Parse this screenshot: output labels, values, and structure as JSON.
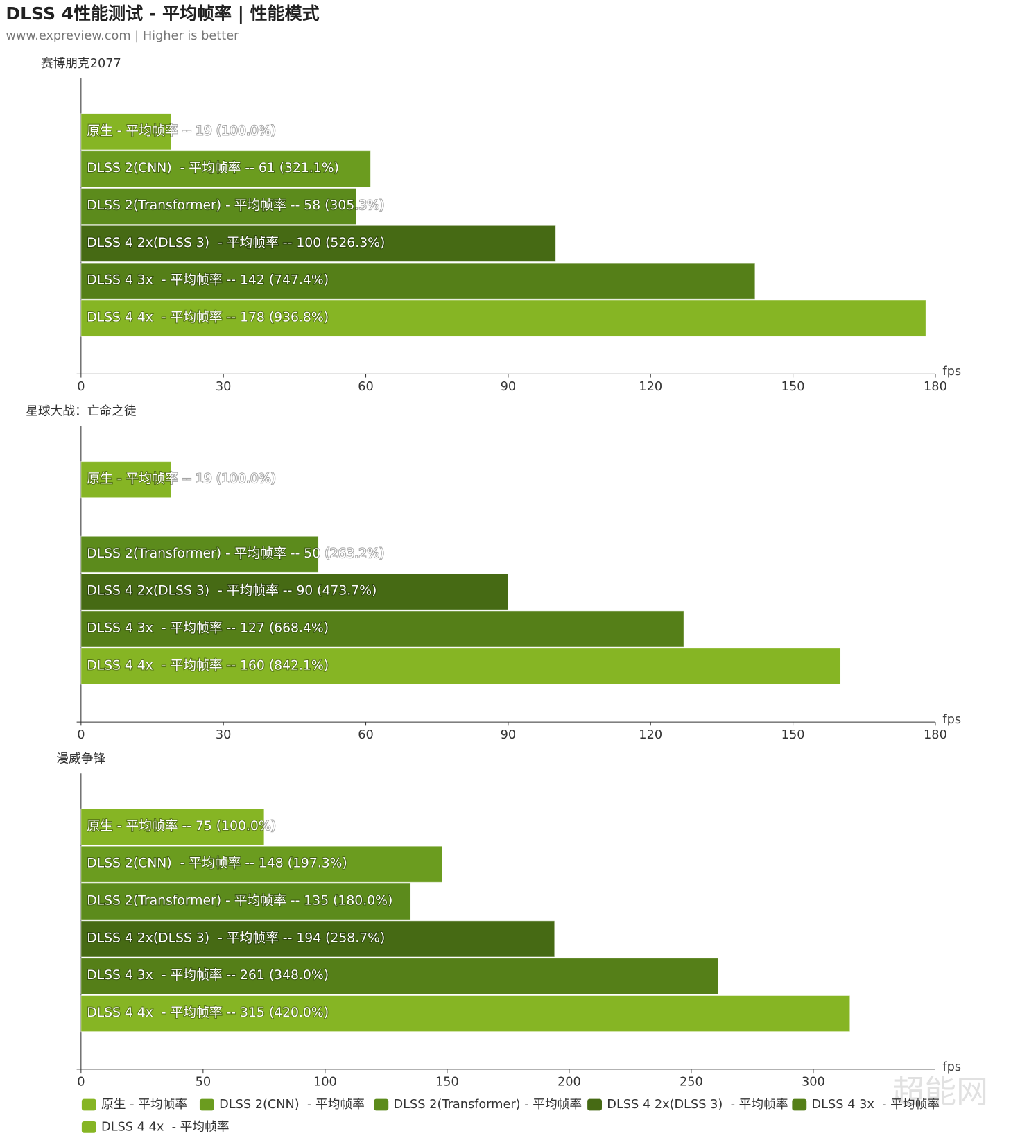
{
  "title": "DLSS 4性能测试 - 平均帧率 | 性能模式",
  "subtitle": "www.expreview.com | Higher is better",
  "watermark": "超能网",
  "chart_data": [
    {
      "type": "bar",
      "orientation": "horizontal",
      "title": "赛博朋克2077",
      "xlabel": "fps",
      "xlim": [
        0,
        180
      ],
      "xticks": [
        0,
        30,
        60,
        90,
        120,
        150,
        180
      ],
      "series": [
        {
          "name": "原生 - 平均帧率",
          "color": "#86b524",
          "values": [
            19
          ],
          "value_labels": [
            "原生 - 平均帧率 -- 19 (100.0%)"
          ]
        },
        {
          "name": "DLSS 2(CNN)  - 平均帧率",
          "color": "#6b9c1f",
          "values": [
            61
          ],
          "value_labels": [
            "DLSS 2(CNN)  - 平均帧率 -- 61 (321.1%)"
          ]
        },
        {
          "name": "DLSS 2(Transformer) - 平均帧率",
          "color": "#5c8b1c",
          "values": [
            58
          ],
          "value_labels": [
            "DLSS 2(Transformer) - 平均帧率 -- 58 (305.3%)"
          ]
        },
        {
          "name": "DLSS 4 2x(DLSS 3)  - 平均帧率",
          "color": "#466a14",
          "values": [
            100
          ],
          "value_labels": [
            "DLSS 4 2x(DLSS 3)  - 平均帧率 -- 100 (526.3%)"
          ]
        },
        {
          "name": "DLSS 4 3x  - 平均帧率",
          "color": "#557f18",
          "values": [
            142
          ],
          "value_labels": [
            "DLSS 4 3x  - 平均帧率 -- 142 (747.4%)"
          ]
        },
        {
          "name": "DLSS 4 4x  - 平均帧率",
          "color": "#86b524",
          "values": [
            178
          ],
          "value_labels": [
            "DLSS 4 4x  - 平均帧率 -- 178 (936.8%)"
          ]
        }
      ]
    },
    {
      "type": "bar",
      "orientation": "horizontal",
      "title": "星球大战：亡命之徒",
      "xlabel": "fps",
      "xlim": [
        0,
        180
      ],
      "xticks": [
        0,
        30,
        60,
        90,
        120,
        150,
        180
      ],
      "series": [
        {
          "name": "原生 - 平均帧率",
          "color": "#86b524",
          "values": [
            19
          ],
          "value_labels": [
            "原生 - 平均帧率 -- 19 (100.0%)"
          ]
        },
        {
          "name": "DLSS 2(CNN)  - 平均帧率",
          "color": "#6b9c1f",
          "values": [
            null
          ],
          "value_labels": [
            null
          ]
        },
        {
          "name": "DLSS 2(Transformer) - 平均帧率",
          "color": "#5c8b1c",
          "values": [
            50
          ],
          "value_labels": [
            "DLSS 2(Transformer) - 平均帧率 -- 50 (263.2%)"
          ]
        },
        {
          "name": "DLSS 4 2x(DLSS 3)  - 平均帧率",
          "color": "#466a14",
          "values": [
            90
          ],
          "value_labels": [
            "DLSS 4 2x(DLSS 3)  - 平均帧率 -- 90 (473.7%)"
          ]
        },
        {
          "name": "DLSS 4 3x  - 平均帧率",
          "color": "#557f18",
          "values": [
            127
          ],
          "value_labels": [
            "DLSS 4 3x  - 平均帧率 -- 127 (668.4%)"
          ]
        },
        {
          "name": "DLSS 4 4x  - 平均帧率",
          "color": "#86b524",
          "values": [
            160
          ],
          "value_labels": [
            "DLSS 4 4x  - 平均帧率 -- 160 (842.1%)"
          ]
        }
      ]
    },
    {
      "type": "bar",
      "orientation": "horizontal",
      "title": "漫威争锋",
      "xlabel": "fps",
      "xlim": [
        0,
        350
      ],
      "xticks": [
        0,
        50,
        100,
        150,
        200,
        250,
        300
      ],
      "series": [
        {
          "name": "原生 - 平均帧率",
          "color": "#86b524",
          "values": [
            75
          ],
          "value_labels": [
            "原生 - 平均帧率 -- 75 (100.0%)"
          ]
        },
        {
          "name": "DLSS 2(CNN)  - 平均帧率",
          "color": "#6b9c1f",
          "values": [
            148
          ],
          "value_labels": [
            "DLSS 2(CNN)  - 平均帧率 -- 148 (197.3%)"
          ]
        },
        {
          "name": "DLSS 2(Transformer) - 平均帧率",
          "color": "#5c8b1c",
          "values": [
            135
          ],
          "value_labels": [
            "DLSS 2(Transformer) - 平均帧率 -- 135 (180.0%)"
          ]
        },
        {
          "name": "DLSS 4 2x(DLSS 3)  - 平均帧率",
          "color": "#466a14",
          "values": [
            194
          ],
          "value_labels": [
            "DLSS 4 2x(DLSS 3)  - 平均帧率 -- 194 (258.7%)"
          ]
        },
        {
          "name": "DLSS 4 3x  - 平均帧率",
          "color": "#557f18",
          "values": [
            261
          ],
          "value_labels": [
            "DLSS 4 3x  - 平均帧率 -- 261 (348.0%)"
          ]
        },
        {
          "name": "DLSS 4 4x  - 平均帧率",
          "color": "#86b524",
          "values": [
            315
          ],
          "value_labels": [
            "DLSS 4 4x  - 平均帧率 -- 315 (420.0%)"
          ]
        }
      ]
    }
  ]
}
